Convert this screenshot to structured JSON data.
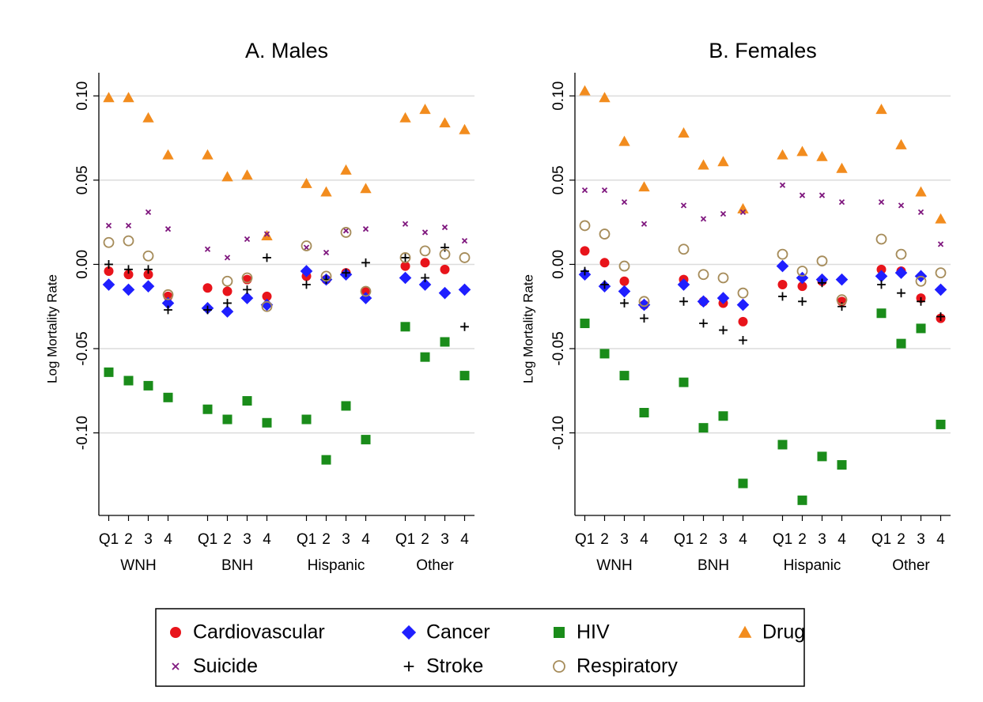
{
  "legend": [
    {
      "name": "Cardiovascular",
      "color": "#e8141b",
      "marker": "circle"
    },
    {
      "name": "Cancer",
      "color": "#1f1fff",
      "marker": "diamond"
    },
    {
      "name": "HIV",
      "color": "#1a8c1a",
      "marker": "square"
    },
    {
      "name": "Drug",
      "color": "#f28c1e",
      "marker": "triangle"
    },
    {
      "name": "Suicide",
      "color": "#80197f",
      "marker": "x"
    },
    {
      "name": "Stroke",
      "color": "#000000",
      "marker": "plus"
    },
    {
      "name": "Respiratory",
      "color": "#a68c5a",
      "marker": "hollow-circle"
    }
  ],
  "chart_data": [
    {
      "type": "scatter",
      "title": "A. Males",
      "y_label": "Log Mortality Rate",
      "categories": [
        "Q1",
        "2",
        "3",
        "4",
        "Q1",
        "2",
        "3",
        "4",
        "Q1",
        "2",
        "3",
        "4",
        "Q1",
        "2",
        "3",
        "4"
      ],
      "groups": [
        "WNH",
        "BNH",
        "Hispanic",
        "Other"
      ],
      "ylim": [
        -0.149,
        0.11
      ],
      "yticks": [
        {
          "value": -0.1,
          "label": "-0.10"
        },
        {
          "value": -0.05,
          "label": "-0.05"
        },
        {
          "value": 0,
          "label": "0.00"
        },
        {
          "value": 0.05,
          "label": "0.05"
        },
        {
          "value": 0.1,
          "label": "0.10"
        }
      ],
      "grid": true,
      "series": [
        {
          "values": [
            -0.004,
            -0.006,
            -0.006,
            -0.019,
            -0.014,
            -0.016,
            -0.009,
            -0.019,
            -0.007,
            -0.009,
            -0.005,
            -0.016,
            -0.001,
            0.001,
            -0.003,
            null
          ]
        },
        {
          "values": [
            -0.012,
            -0.015,
            -0.013,
            -0.023,
            -0.026,
            -0.028,
            -0.02,
            -0.024,
            -0.004,
            -0.009,
            -0.006,
            -0.02,
            -0.008,
            -0.012,
            -0.017,
            -0.015
          ]
        },
        {
          "values": [
            -0.064,
            -0.069,
            -0.072,
            -0.079,
            -0.086,
            -0.092,
            -0.081,
            -0.094,
            -0.092,
            -0.116,
            -0.084,
            -0.104,
            -0.037,
            -0.055,
            -0.046,
            -0.066
          ]
        },
        {
          "values": [
            0.099,
            0.099,
            0.087,
            0.065,
            0.065,
            0.052,
            0.053,
            0.017,
            0.048,
            0.043,
            0.056,
            0.045,
            0.087,
            0.092,
            0.084,
            0.08
          ]
        },
        {
          "values": [
            0.023,
            0.023,
            0.031,
            0.021,
            0.009,
            0.004,
            0.015,
            0.018,
            0.01,
            0.007,
            0.02,
            0.021,
            0.024,
            0.019,
            0.022,
            0.014
          ]
        },
        {
          "values": [
            0.0,
            -0.003,
            -0.003,
            -0.027,
            -0.027,
            -0.023,
            -0.015,
            0.004,
            -0.012,
            -0.009,
            -0.005,
            0.001,
            0.004,
            -0.008,
            0.01,
            -0.037
          ]
        },
        {
          "values": [
            0.013,
            0.014,
            0.005,
            -0.018,
            null,
            -0.01,
            -0.008,
            -0.025,
            0.011,
            -0.007,
            0.019,
            -0.016,
            0.004,
            0.008,
            0.006,
            0.004
          ]
        }
      ]
    },
    {
      "type": "scatter",
      "title": "B. Females",
      "y_label": "Log Mortality Rate",
      "categories": [
        "Q1",
        "2",
        "3",
        "4",
        "Q1",
        "2",
        "3",
        "4",
        "Q1",
        "2",
        "3",
        "4",
        "Q1",
        "2",
        "3",
        "4"
      ],
      "groups": [
        "WNH",
        "BNH",
        "Hispanic",
        "Other"
      ],
      "ylim": [
        -0.149,
        0.11
      ],
      "yticks": [
        {
          "value": -0.1,
          "label": "-0.10"
        },
        {
          "value": -0.05,
          "label": "-0.05"
        },
        {
          "value": 0,
          "label": "0.00"
        },
        {
          "value": 0.05,
          "label": "0.05"
        },
        {
          "value": 0.1,
          "label": "0.10"
        }
      ],
      "grid": true,
      "series": [
        {
          "values": [
            0.008,
            0.001,
            -0.01,
            -0.024,
            -0.009,
            -0.022,
            -0.023,
            -0.034,
            -0.012,
            -0.013,
            -0.01,
            -0.022,
            -0.003,
            -0.004,
            -0.02,
            -0.032
          ]
        },
        {
          "values": [
            -0.006,
            -0.013,
            -0.016,
            -0.024,
            -0.012,
            -0.022,
            -0.02,
            -0.024,
            -0.001,
            -0.008,
            -0.009,
            -0.009,
            -0.007,
            -0.005,
            -0.007,
            -0.015
          ]
        },
        {
          "values": [
            -0.035,
            -0.053,
            -0.066,
            -0.088,
            -0.07,
            -0.097,
            -0.09,
            -0.13,
            -0.107,
            -0.14,
            -0.114,
            -0.119,
            -0.029,
            -0.047,
            -0.038,
            -0.095
          ]
        },
        {
          "values": [
            0.103,
            0.099,
            0.073,
            0.046,
            0.078,
            0.059,
            0.061,
            0.033,
            0.065,
            0.067,
            0.064,
            0.057,
            0.092,
            0.071,
            0.043,
            0.027
          ]
        },
        {
          "values": [
            0.044,
            0.044,
            0.037,
            0.024,
            0.035,
            0.027,
            0.03,
            0.031,
            0.047,
            0.041,
            0.041,
            0.037,
            0.037,
            0.035,
            0.031,
            0.012
          ]
        },
        {
          "values": [
            -0.004,
            -0.012,
            -0.023,
            -0.032,
            -0.022,
            -0.035,
            -0.039,
            -0.045,
            -0.019,
            -0.022,
            -0.011,
            -0.025,
            -0.012,
            -0.017,
            -0.022,
            -0.031
          ]
        },
        {
          "values": [
            0.023,
            0.018,
            -0.001,
            -0.022,
            0.009,
            -0.006,
            -0.008,
            -0.017,
            0.006,
            -0.004,
            0.002,
            -0.021,
            0.015,
            0.006,
            -0.01,
            -0.005
          ]
        }
      ]
    }
  ]
}
